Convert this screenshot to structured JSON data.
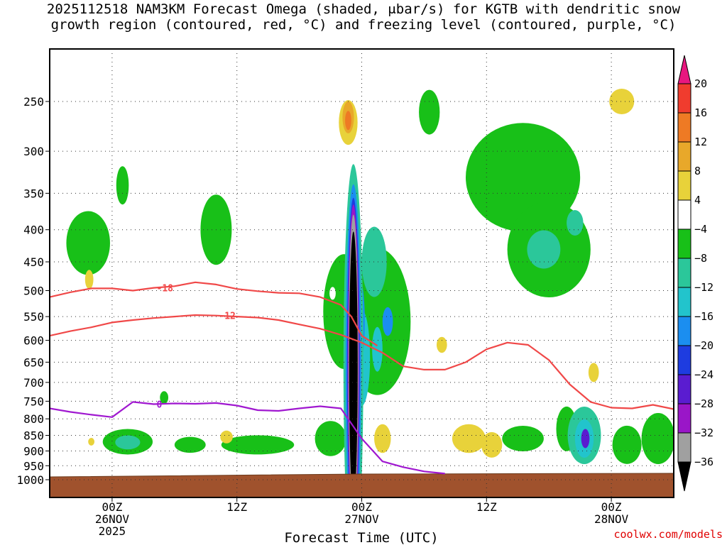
{
  "title": {
    "line1": "2025112518 NAM3KM Forecast Omega (shaded, μbar/s) for KGTB with dendritic snow",
    "line2": "growth region (contoured, red, °C) and freezing level (contoured, purple, °C)"
  },
  "credit": "coolwx.com/models",
  "chart_data": {
    "type": "heatmap",
    "title": "2025112518 NAM3KM Forecast Omega (shaded, μbar/s) for KGTB with dendritic snow growth region (contoured, red, °C) and freezing level (contoured, purple, °C)",
    "xlabel": "Forecast Time (UTC)",
    "ylabel": "",
    "x_unit": "forecast hour from 2025-11-25 18Z",
    "xlim": [
      0,
      60
    ],
    "ylim_hpa": [
      1040,
      200
    ],
    "x_ticks": [
      {
        "hour": 6,
        "lines": [
          "00Z",
          "26NOV",
          "2025"
        ]
      },
      {
        "hour": 18,
        "lines": [
          "12Z"
        ]
      },
      {
        "hour": 30,
        "lines": [
          "00Z",
          "27NOV"
        ]
      },
      {
        "hour": 42,
        "lines": [
          "12Z"
        ]
      },
      {
        "hour": 54,
        "lines": [
          "00Z",
          "28NOV"
        ]
      }
    ],
    "y_ticks": [
      250,
      300,
      350,
      400,
      450,
      500,
      550,
      600,
      650,
      700,
      750,
      800,
      850,
      900,
      950,
      1000
    ],
    "colorbar": {
      "labels": [
        "20",
        "16",
        "12",
        "8",
        "4",
        "−4",
        "−8",
        "−12",
        "−16",
        "−20",
        "−24",
        "−28",
        "−32",
        "−36"
      ],
      "colors": [
        "#e8177f",
        "#f03c2e",
        "#ee7a24",
        "#e8a82a",
        "#e8d23a",
        "#ffffff",
        "#18c018",
        "#2bc79a",
        "#22c4cc",
        "#1b8ef0",
        "#1e3ce0",
        "#5a1cd0",
        "#9a16c8",
        "#a0a0a0",
        "#000000"
      ]
    },
    "omega_features": [
      {
        "hour": 29.2,
        "p": 620,
        "value": -40,
        "note": "strong ascent core 450-950 hPa"
      },
      {
        "hour": 28.7,
        "p": 270,
        "value": 14,
        "note": "upper-level subsidence"
      },
      {
        "hour": 51.4,
        "p": 860,
        "value": -26
      },
      {
        "hour": 7.5,
        "p": 870,
        "value": -10
      },
      {
        "hour": 40.3,
        "p": 860,
        "value": 8
      },
      {
        "hour": 46.5,
        "p": 420,
        "value": -10
      }
    ],
    "series": [
      {
        "name": "-18",
        "color": "#f04848",
        "x": [
          0,
          2,
          4,
          6,
          8,
          10,
          12,
          14,
          16,
          18,
          20,
          22,
          24,
          26,
          28,
          29,
          30,
          31.5
        ],
        "y": [
          512,
          503,
          496,
          496,
          500,
          495,
          492,
          485,
          489,
          497,
          501,
          504,
          505,
          512,
          527,
          550,
          590,
          612
        ]
      },
      {
        "name": "-12",
        "color": "#f04848",
        "x": [
          0,
          2,
          4,
          6,
          8,
          10,
          12,
          14,
          16,
          18,
          20,
          22,
          24,
          26,
          28,
          30,
          32,
          34,
          36,
          38,
          40,
          42,
          44,
          46,
          48,
          50,
          52,
          54,
          56,
          58,
          60
        ],
        "y": [
          590,
          580,
          572,
          562,
          557,
          553,
          550,
          547,
          548,
          550,
          552,
          557,
          566,
          575,
          588,
          605,
          628,
          660,
          668,
          668,
          650,
          620,
          605,
          610,
          645,
          705,
          752,
          768,
          770,
          760,
          772
        ]
      },
      {
        "name": "0",
        "color": "#a018d0",
        "x": [
          0,
          2,
          4,
          6,
          8,
          10,
          12,
          14,
          16,
          18,
          20,
          22,
          24,
          26,
          28,
          30,
          32,
          34,
          36,
          38
        ],
        "y": [
          770,
          780,
          788,
          795,
          752,
          758,
          756,
          757,
          755,
          762,
          775,
          777,
          770,
          764,
          770,
          860,
          935,
          955,
          970,
          978
        ]
      }
    ]
  }
}
